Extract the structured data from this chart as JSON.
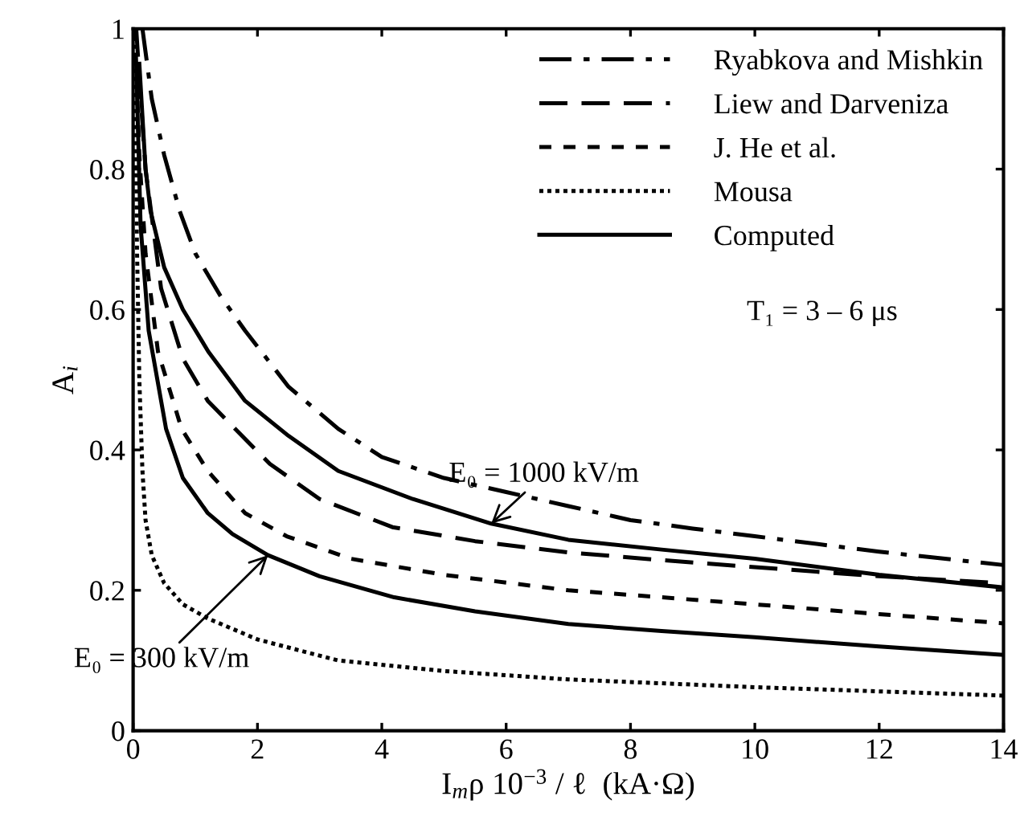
{
  "chart_data": {
    "type": "line",
    "xlabel": "I$_{m}$ρ 10$^{−3}$ / ℓ  (kA·Ω)",
    "ylabel": "A$_{i}$",
    "xlim": [
      0,
      14
    ],
    "ylim": [
      0,
      1
    ],
    "xticks": [
      0,
      2,
      4,
      6,
      8,
      10,
      12,
      14
    ],
    "yticks": [
      0,
      0.2,
      0.4,
      0.6,
      0.8,
      1
    ],
    "grid": false,
    "legend": "top right",
    "marker": "none",
    "series": [
      {
        "name": "Ryabkova and Mishkin",
        "color": "#000000",
        "line_style": "dashdot",
        "x": [
          0.15,
          0.3,
          0.5,
          0.75,
          1,
          1.4,
          1.8,
          2.5,
          3.3,
          4,
          5,
          6,
          7,
          8,
          9,
          10,
          12,
          14
        ],
        "values": [
          1.0,
          0.9,
          0.82,
          0.74,
          0.68,
          0.62,
          0.57,
          0.49,
          0.43,
          0.39,
          0.36,
          0.34,
          0.32,
          0.3,
          0.288,
          0.277,
          0.255,
          0.236
        ]
      },
      {
        "name": "Liew and Darveniza",
        "color": "#000000",
        "line_style": "long dashed",
        "x": [
          0.05,
          0.1,
          0.2,
          0.45,
          0.8,
          1.2,
          1.64,
          2.2,
          3,
          4.17,
          5.5,
          7,
          8.5,
          10,
          12,
          14
        ],
        "values": [
          1.0,
          0.93,
          0.8,
          0.63,
          0.53,
          0.47,
          0.43,
          0.38,
          0.33,
          0.29,
          0.27,
          0.254,
          0.243,
          0.233,
          0.22,
          0.21
        ]
      },
      {
        "name": "J. He et al.",
        "color": "#000000",
        "line_style": "dashed",
        "x": [
          0.03,
          0.1,
          0.2,
          0.4,
          0.78,
          1.2,
          1.8,
          2.47,
          3.5,
          5,
          7,
          10,
          12,
          14
        ],
        "values": [
          1.0,
          0.82,
          0.68,
          0.54,
          0.43,
          0.37,
          0.31,
          0.277,
          0.245,
          0.222,
          0.2,
          0.18,
          0.166,
          0.153
        ]
      },
      {
        "name": "Mousa",
        "color": "#000000",
        "line_style": "dotted",
        "x": [
          0.03,
          0.06,
          0.1,
          0.15,
          0.2,
          0.3,
          0.5,
          0.8,
          1.2,
          2,
          3.3,
          5,
          7,
          10,
          14
        ],
        "values": [
          1.0,
          0.7,
          0.5,
          0.37,
          0.3,
          0.25,
          0.21,
          0.18,
          0.16,
          0.13,
          0.1,
          0.085,
          0.073,
          0.062,
          0.05
        ]
      },
      {
        "name": "Computed",
        "color": "#000000",
        "line_style": "solid",
        "x": [
          0.1,
          0.2,
          0.28,
          0.5,
          0.8,
          1.21,
          1.8,
          2.5,
          3.3,
          4.5,
          5.76,
          7,
          8.5,
          10,
          12,
          14
        ],
        "values": [
          0.95,
          0.8,
          0.74,
          0.66,
          0.6,
          0.54,
          0.47,
          0.42,
          0.37,
          0.33,
          0.295,
          0.272,
          0.258,
          0.245,
          0.222,
          0.204
        ]
      },
      {
        "color": "#000000",
        "line_style": "solid",
        "x": [
          0.05,
          0.12,
          0.25,
          0.53,
          0.8,
          1.2,
          1.6,
          2.17,
          3,
          4.2,
          5.5,
          7,
          8.5,
          10,
          12,
          14
        ],
        "values": [
          0.95,
          0.72,
          0.57,
          0.43,
          0.36,
          0.31,
          0.28,
          0.25,
          0.22,
          0.19,
          0.17,
          0.152,
          0.142,
          0.133,
          0.12,
          0.108
        ]
      }
    ],
    "annotations": [
      {
        "text": "E₀ = 1000 kV/m",
        "x": 5.76,
        "y": 0.295
      },
      {
        "text": "E₀ = 300 kV/m",
        "x": 2.17,
        "y": 0.25
      },
      "T₁ = 3 – 6 μs"
    ]
  }
}
